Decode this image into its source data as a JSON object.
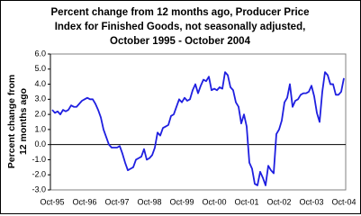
{
  "chart_data": {
    "type": "line",
    "title": [
      "Percent change from 12 months ago, Producer Price",
      "Index  for Finished Goods, not seasonally adjusted,",
      "October 1995 - October 2004"
    ],
    "y_label": [
      "Percent change from",
      "12 months ago"
    ],
    "categories": [
      "Oct-95",
      null,
      null,
      null,
      null,
      null,
      null,
      null,
      null,
      null,
      null,
      null,
      "Oct-96",
      null,
      null,
      null,
      null,
      null,
      null,
      null,
      null,
      null,
      null,
      null,
      "Oct-97",
      null,
      null,
      null,
      null,
      null,
      null,
      null,
      null,
      null,
      null,
      null,
      "Oct-98",
      null,
      null,
      null,
      null,
      null,
      null,
      null,
      null,
      null,
      null,
      null,
      "Oct-99",
      null,
      null,
      null,
      null,
      null,
      null,
      null,
      null,
      null,
      null,
      null,
      "Oct-00",
      null,
      null,
      null,
      null,
      null,
      null,
      null,
      null,
      null,
      null,
      null,
      "Oct-01",
      null,
      null,
      null,
      null,
      null,
      null,
      null,
      null,
      null,
      null,
      null,
      "Oct-02",
      null,
      null,
      null,
      null,
      null,
      null,
      null,
      null,
      null,
      null,
      null,
      "Oct-03",
      null,
      null,
      null,
      null,
      null,
      null,
      null,
      null,
      null,
      null,
      null,
      "Oct-04"
    ],
    "values": [
      2.3,
      2.1,
      2.2,
      2.0,
      2.3,
      2.2,
      2.3,
      2.6,
      2.5,
      2.5,
      2.7,
      2.9,
      3.0,
      3.1,
      3.0,
      3.0,
      2.7,
      2.3,
      1.8,
      1.0,
      0.5,
      0.0,
      -0.2,
      -0.2,
      -0.2,
      -0.1,
      -0.6,
      -1.2,
      -1.7,
      -1.6,
      -1.5,
      -1.0,
      -0.9,
      -0.8,
      -0.3,
      -1.0,
      -0.9,
      -0.7,
      -0.2,
      0.8,
      0.6,
      1.1,
      1.2,
      1.3,
      1.9,
      2.0,
      2.5,
      3.0,
      2.8,
      3.1,
      2.9,
      3.0,
      3.6,
      4.0,
      3.4,
      3.9,
      4.3,
      4.2,
      4.5,
      3.6,
      3.7,
      3.6,
      3.8,
      3.7,
      4.8,
      4.6,
      3.8,
      3.6,
      2.8,
      2.5,
      1.4,
      2.0,
      1.2,
      -1.2,
      -1.6,
      -2.6,
      -2.7,
      -1.8,
      -2.2,
      -2.7,
      -1.4,
      -1.7,
      -1.9,
      0.7,
      1.0,
      1.6,
      2.8,
      3.1,
      4.0,
      2.5,
      2.9,
      3.0,
      3.3,
      3.4,
      3.4,
      3.5,
      3.9,
      3.2,
      2.1,
      1.5,
      3.5,
      4.8,
      4.6,
      4.0,
      4.0,
      3.3,
      3.3,
      3.5,
      4.4
    ],
    "color": "#1f1fe0",
    "ylim": [
      -3,
      6
    ],
    "yticks": [
      {
        "value": -3,
        "label": "-3.0"
      },
      {
        "value": -2,
        "label": "-2.0"
      },
      {
        "value": -1,
        "label": "-1.0"
      },
      {
        "value": 0,
        "label": "0.0"
      },
      {
        "value": 1,
        "label": "1.0"
      },
      {
        "value": 2,
        "label": "2.0"
      },
      {
        "value": 3,
        "label": "3.0"
      },
      {
        "value": 4,
        "label": "4.0"
      },
      {
        "value": 5,
        "label": "5.0"
      },
      {
        "value": 6,
        "label": "6.0"
      }
    ],
    "grid": false
  }
}
